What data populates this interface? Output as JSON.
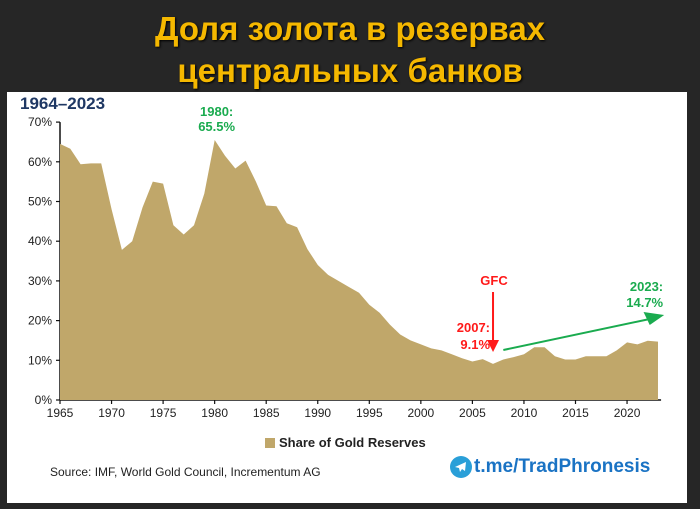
{
  "header": {
    "title_line1": "Доля золота в резервах",
    "title_line2": "центральных банков"
  },
  "chart": {
    "period_label": "1964–2023",
    "legend_label": "Share of Gold Reserves",
    "source": "Source: IMF, World Gold Council, Incrementum AG",
    "annotations": {
      "peak_year": "1980:",
      "peak_value": "65.5%",
      "gfc": "GFC",
      "low_year": "2007:",
      "low_value": "9.1%",
      "end_year": "2023:",
      "end_value": "14.7%"
    },
    "colors": {
      "fill": "#c0a76a",
      "peak_label": "#1aab4f",
      "gfc": "#ff1a1a",
      "trend_arrow": "#1aab4f",
      "period": "#1f3864"
    }
  },
  "brand": {
    "text": "t.me/TradPhronesis",
    "icon": "telegram-icon"
  },
  "chart_data": {
    "type": "area",
    "title": "Доля золота в резервах центральных банков",
    "subtitle": "1964–2023",
    "xlabel": "",
    "ylabel": "",
    "ylim": [
      0,
      70
    ],
    "yticks": [
      "0%",
      "10%",
      "20%",
      "30%",
      "40%",
      "50%",
      "60%",
      "70%"
    ],
    "xticks": [
      "1965",
      "1970",
      "1975",
      "1980",
      "1985",
      "1990",
      "1995",
      "2000",
      "2005",
      "2010",
      "2015",
      "2020"
    ],
    "legend": [
      "Share of Gold Reserves"
    ],
    "legend_position": "bottom",
    "grid": false,
    "series": [
      {
        "name": "Share of Gold Reserves",
        "x": [
          1965,
          1966,
          1967,
          1968,
          1969,
          1970,
          1971,
          1972,
          1973,
          1974,
          1975,
          1976,
          1977,
          1978,
          1979,
          1980,
          1981,
          1982,
          1983,
          1984,
          1985,
          1986,
          1987,
          1988,
          1989,
          1990,
          1991,
          1992,
          1993,
          1994,
          1995,
          1996,
          1997,
          1998,
          1999,
          2000,
          2001,
          2002,
          2003,
          2004,
          2005,
          2006,
          2007,
          2008,
          2009,
          2010,
          2011,
          2012,
          2013,
          2014,
          2015,
          2016,
          2017,
          2018,
          2019,
          2020,
          2021,
          2022,
          2023
        ],
        "values": [
          64.5,
          63.3,
          59.4,
          59.6,
          59.6,
          48.0,
          37.8,
          40.0,
          48.5,
          55.0,
          54.5,
          44.0,
          41.7,
          44.0,
          52.0,
          65.5,
          61.5,
          58.3,
          60.3,
          55.0,
          49.0,
          48.8,
          44.5,
          43.5,
          38.0,
          34.0,
          31.5,
          30.0,
          28.5,
          27.0,
          24.0,
          22.0,
          19.0,
          16.5,
          15.0,
          14.0,
          13.0,
          12.5,
          11.5,
          10.5,
          9.7,
          10.3,
          9.1,
          10.2,
          10.8,
          11.5,
          13.3,
          13.3,
          11.0,
          10.2,
          10.2,
          11.0,
          11.0,
          11.0,
          12.5,
          14.5,
          14.0,
          14.9,
          14.7
        ]
      }
    ],
    "annotations": [
      {
        "text": "1980: 65.5%",
        "x": 1980,
        "y": 65.5,
        "color": "#1aab4f"
      },
      {
        "text": "GFC",
        "x": 2007,
        "type": "down-arrow",
        "color": "#ff1a1a"
      },
      {
        "text": "2007: 9.1%",
        "x": 2007,
        "y": 9.1,
        "color": "#ff1a1a"
      },
      {
        "text": "2023: 14.7%",
        "x": 2023,
        "y": 14.7,
        "type": "trend-arrow",
        "color": "#1aab4f"
      }
    ],
    "source": "Source: IMF, World Gold Council, Incrementum AG"
  }
}
